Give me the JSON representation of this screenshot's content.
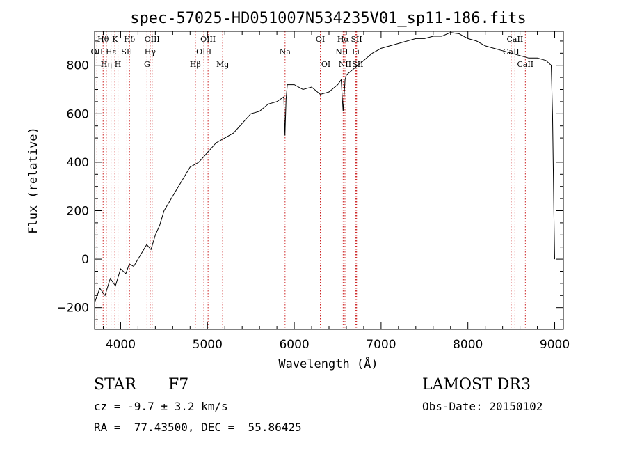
{
  "chart_data": {
    "type": "line",
    "title": "spec-57025-HD051007N534235V01_sp11-186.fits",
    "xlabel": "Wavelength (Å)",
    "ylabel": "Flux (relative)",
    "xlim": [
      3700,
      9100
    ],
    "ylim": [
      -290,
      940
    ],
    "xticks": [
      4000,
      5000,
      6000,
      7000,
      8000,
      9000
    ],
    "yticks": [
      -200,
      0,
      200,
      400,
      600,
      800
    ],
    "grid": false,
    "line_color": "#000000",
    "marker_line_color": "#cc2222",
    "series": [
      {
        "x": [
          3700,
          3760,
          3820,
          3880,
          3940,
          4000,
          4060,
          4100,
          4150,
          4200,
          4250,
          4300,
          4350,
          4400,
          4450,
          4500,
          4600,
          4700,
          4800,
          4900,
          5000,
          5100,
          5200,
          5300,
          5400,
          5500,
          5600,
          5700,
          5800,
          5880,
          5893,
          5906,
          5920,
          6000,
          6100,
          6200,
          6300,
          6400,
          6500,
          6540,
          6563,
          6585,
          6600,
          6700,
          6800,
          6900,
          7000,
          7100,
          7200,
          7300,
          7400,
          7500,
          7600,
          7700,
          7800,
          7900,
          8000,
          8100,
          8200,
          8300,
          8400,
          8500,
          8600,
          8700,
          8800,
          8900,
          8960,
          8975,
          8990,
          9000
        ],
        "y": [
          -180,
          -120,
          -150,
          -80,
          -110,
          -40,
          -60,
          -20,
          -30,
          0,
          30,
          60,
          40,
          100,
          140,
          200,
          260,
          320,
          380,
          400,
          440,
          480,
          500,
          520,
          560,
          600,
          610,
          640,
          650,
          670,
          510,
          660,
          720,
          720,
          700,
          710,
          680,
          690,
          720,
          740,
          610,
          740,
          760,
          790,
          820,
          850,
          870,
          880,
          890,
          900,
          910,
          910,
          920,
          920,
          935,
          930,
          910,
          900,
          880,
          870,
          860,
          850,
          840,
          830,
          830,
          820,
          800,
          600,
          200,
          0
        ]
      }
    ],
    "line_markers": [
      {
        "label": "Hθ",
        "x": 3798,
        "row": 0
      },
      {
        "label": "OII",
        "x": 3727,
        "row": 1
      },
      {
        "label": "Hη",
        "x": 3835,
        "row": 2
      },
      {
        "label": "Hε",
        "x": 3889,
        "row": 1
      },
      {
        "label": "K",
        "x": 3934,
        "row": 0
      },
      {
        "label": "H",
        "x": 3969,
        "row": 2
      },
      {
        "label": "SII",
        "x": 4072,
        "row": 1
      },
      {
        "label": "Hδ",
        "x": 4102,
        "row": 0
      },
      {
        "label": "G",
        "x": 4304,
        "row": 2
      },
      {
        "label": "Hγ",
        "x": 4340,
        "row": 1
      },
      {
        "label": "OIII",
        "x": 4363,
        "row": 0
      },
      {
        "label": "Hβ",
        "x": 4861,
        "row": 2
      },
      {
        "label": "OIII",
        "x": 4959,
        "row": 1
      },
      {
        "label": "OIII",
        "x": 5007,
        "row": 0
      },
      {
        "label": "Mg",
        "x": 5175,
        "row": 2
      },
      {
        "label": "Na",
        "x": 5894,
        "row": 1
      },
      {
        "label": "OI",
        "x": 6300,
        "row": 0
      },
      {
        "label": "OI",
        "x": 6364,
        "row": 2
      },
      {
        "label": "NII",
        "x": 6548,
        "row": 1
      },
      {
        "label": "Hα",
        "x": 6563,
        "row": 0
      },
      {
        "label": "NII",
        "x": 6584,
        "row": 2
      },
      {
        "label": "Li",
        "x": 6708,
        "row": 1
      },
      {
        "label": "SII",
        "x": 6717,
        "row": 0
      },
      {
        "label": "SII",
        "x": 6731,
        "row": 2
      },
      {
        "label": "CaII",
        "x": 8498,
        "row": 1
      },
      {
        "label": "CaII",
        "x": 8542,
        "row": 0
      },
      {
        "label": "CaII",
        "x": 8662,
        "row": 2
      }
    ]
  },
  "info": {
    "class": "STAR",
    "subclass": "F7",
    "survey": "LAMOST DR3",
    "cz": "cz = -9.7 ± 3.2 km/s",
    "obs_date": "Obs-Date: 20150102",
    "radec": "RA =  77.43500, DEC =  55.86425"
  }
}
